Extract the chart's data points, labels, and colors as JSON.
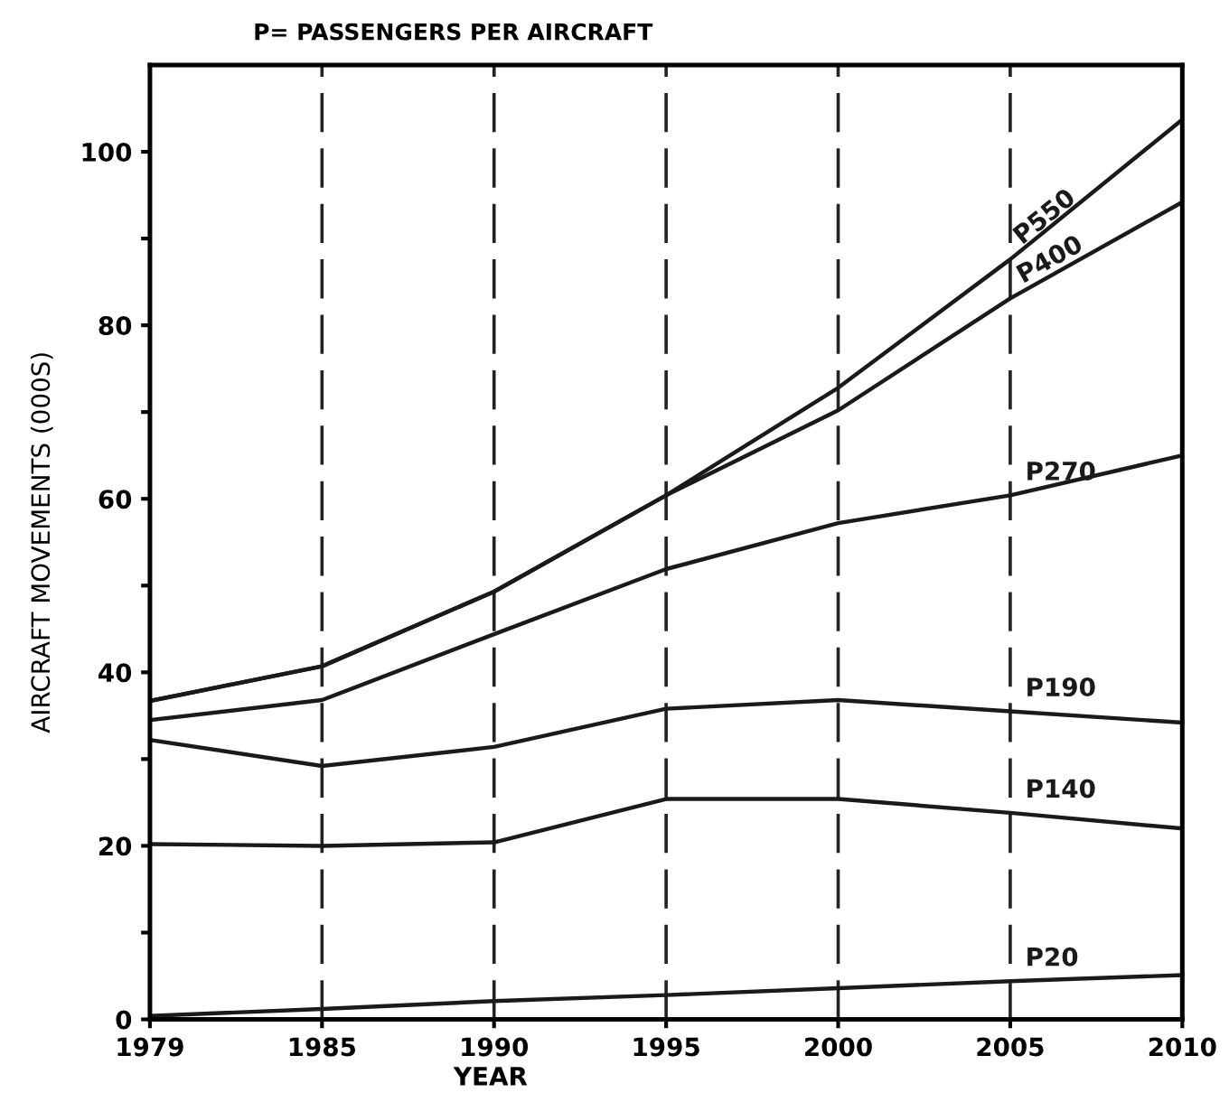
{
  "chart_data": {
    "type": "line",
    "title": "P= PASSENGERS PER AIRCRAFT",
    "xlabel": "YEAR",
    "ylabel": "AIRCRAFT MOVEMENTS (000S)",
    "categories": [
      "1979",
      "1985",
      "1990",
      "1995",
      "2000",
      "2005",
      "2010"
    ],
    "series": [
      {
        "name": "P550",
        "color": "#1a1a1a",
        "values": [
          36.7,
          40.7,
          49.3,
          60.4,
          72.8,
          87.6,
          103.7
        ]
      },
      {
        "name": "P400",
        "color": "#1a1a1a",
        "values": [
          36.7,
          40.7,
          49.3,
          60.4,
          70.2,
          83.1,
          94.2
        ]
      },
      {
        "name": "P270",
        "color": "#1a1a1a",
        "values": [
          34.5,
          36.8,
          44.4,
          51.9,
          57.2,
          60.4,
          65.0
        ]
      },
      {
        "name": "P190",
        "color": "#1a1a1a",
        "values": [
          32.2,
          29.2,
          31.4,
          35.8,
          36.8,
          35.5,
          34.2
        ]
      },
      {
        "name": "P140",
        "color": "#1a1a1a",
        "values": [
          20.2,
          20.0,
          20.4,
          25.4,
          25.4,
          23.8,
          22.0
        ]
      },
      {
        "name": "P20",
        "color": "#1a1a1a",
        "values": [
          0.4,
          1.2,
          2.1,
          2.8,
          3.6,
          4.4,
          5.1
        ]
      }
    ],
    "ylim": [
      0,
      110
    ],
    "yticks": [
      0,
      {
        "value": 10,
        "label": null
      },
      20,
      {
        "value": 30,
        "label": null
      },
      40,
      {
        "value": 50,
        "label": null
      },
      60,
      {
        "value": 70,
        "label": null
      },
      80,
      {
        "value": 90,
        "label": null
      },
      100
    ],
    "grid": "x",
    "line_style": "solid",
    "marker": "none",
    "legend": false
  }
}
